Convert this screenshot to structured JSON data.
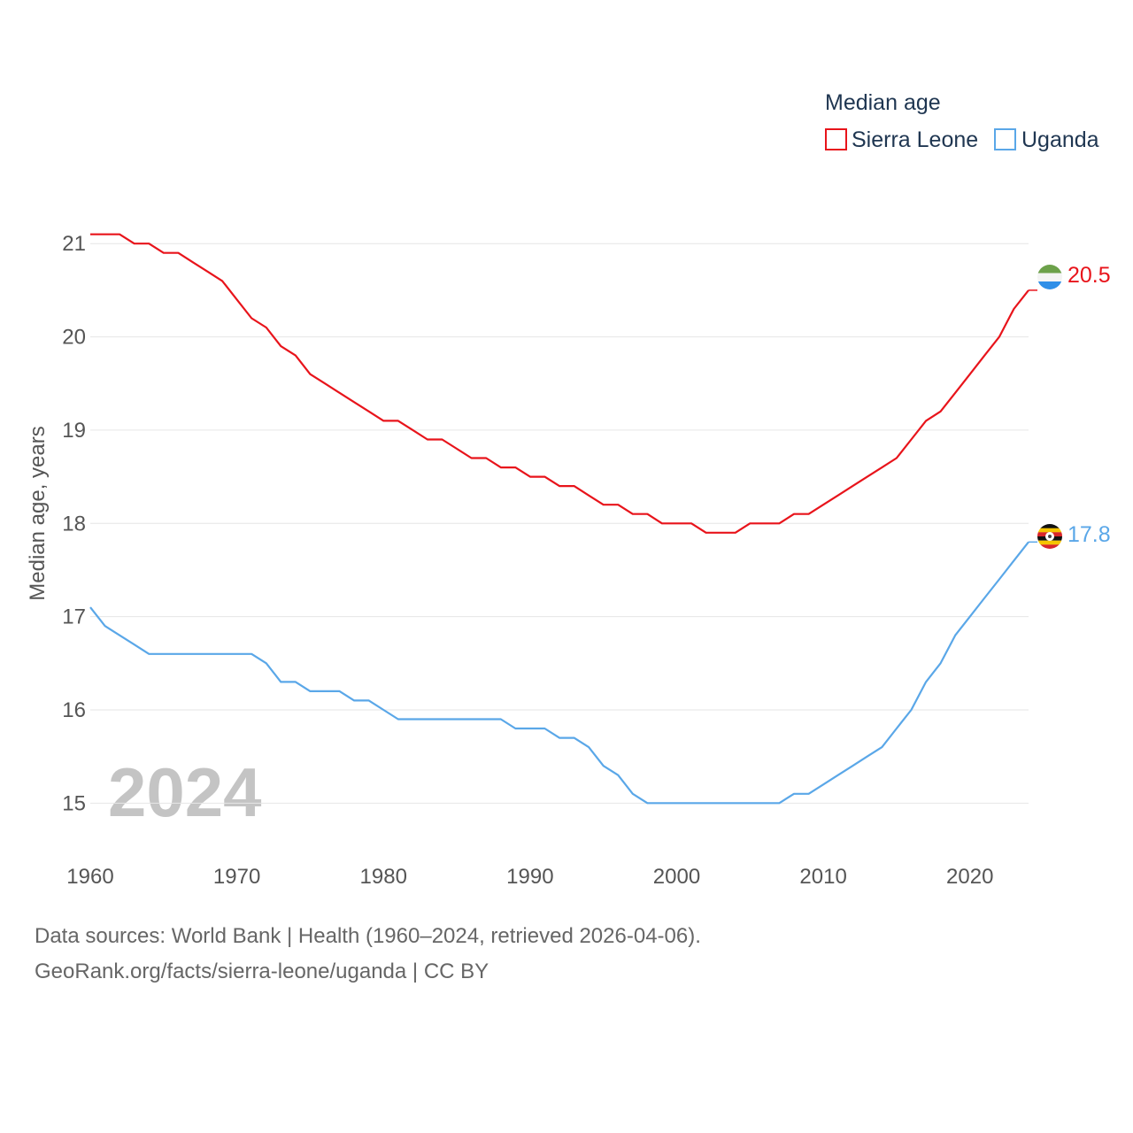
{
  "chart_data": {
    "type": "line",
    "legend_title": "Median age",
    "ylabel": "Median age, years",
    "xlabel": "",
    "year_watermark": "2024",
    "xlim": [
      1960,
      2024
    ],
    "ylim": [
      14.5,
      21.6
    ],
    "x_ticks": [
      1960,
      1970,
      1980,
      1990,
      2000,
      2010,
      2020
    ],
    "y_ticks": [
      15,
      16,
      17,
      18,
      19,
      20,
      21
    ],
    "grid": true,
    "legend_position": "top-right",
    "x": [
      1960,
      1961,
      1962,
      1963,
      1964,
      1965,
      1966,
      1967,
      1968,
      1969,
      1970,
      1971,
      1972,
      1973,
      1974,
      1975,
      1976,
      1977,
      1978,
      1979,
      1980,
      1981,
      1982,
      1983,
      1984,
      1985,
      1986,
      1987,
      1988,
      1989,
      1990,
      1991,
      1992,
      1993,
      1994,
      1995,
      1996,
      1997,
      1998,
      1999,
      2000,
      2001,
      2002,
      2003,
      2004,
      2005,
      2006,
      2007,
      2008,
      2009,
      2010,
      2011,
      2012,
      2013,
      2014,
      2015,
      2016,
      2017,
      2018,
      2019,
      2020,
      2021,
      2022,
      2023,
      2024
    ],
    "series": [
      {
        "name": "Sierra Leone",
        "color": "#e8141b",
        "end_label": "20.5",
        "flag": "sierra-leone-flag-icon",
        "values": [
          21.1,
          21.1,
          21.1,
          21.0,
          21.0,
          20.9,
          20.9,
          20.8,
          20.7,
          20.6,
          20.4,
          20.2,
          20.1,
          19.9,
          19.8,
          19.6,
          19.5,
          19.4,
          19.3,
          19.2,
          19.1,
          19.1,
          19.0,
          18.9,
          18.9,
          18.8,
          18.7,
          18.7,
          18.6,
          18.6,
          18.5,
          18.5,
          18.4,
          18.4,
          18.3,
          18.2,
          18.2,
          18.1,
          18.1,
          18.0,
          18.0,
          18.0,
          17.9,
          17.9,
          17.9,
          18.0,
          18.0,
          18.0,
          18.1,
          18.1,
          18.2,
          18.3,
          18.4,
          18.5,
          18.6,
          18.7,
          18.9,
          19.1,
          19.2,
          19.4,
          19.6,
          19.8,
          20.0,
          20.3,
          20.5
        ]
      },
      {
        "name": "Uganda",
        "color": "#5aa7e8",
        "end_label": "17.8",
        "flag": "uganda-flag-icon",
        "values": [
          17.1,
          16.9,
          16.8,
          16.7,
          16.6,
          16.6,
          16.6,
          16.6,
          16.6,
          16.6,
          16.6,
          16.6,
          16.5,
          16.3,
          16.3,
          16.2,
          16.2,
          16.2,
          16.1,
          16.1,
          16.0,
          15.9,
          15.9,
          15.9,
          15.9,
          15.9,
          15.9,
          15.9,
          15.9,
          15.8,
          15.8,
          15.8,
          15.7,
          15.7,
          15.6,
          15.4,
          15.3,
          15.1,
          15.0,
          15.0,
          15.0,
          15.0,
          15.0,
          15.0,
          15.0,
          15.0,
          15.0,
          15.0,
          15.1,
          15.1,
          15.2,
          15.3,
          15.4,
          15.5,
          15.6,
          15.8,
          16.0,
          16.3,
          16.5,
          16.8,
          17.0,
          17.2,
          17.4,
          17.6,
          17.8
        ]
      }
    ]
  },
  "footer": {
    "sources": "Data sources: World Bank | Health (1960–2024, retrieved 2026-04-06).",
    "attribution": "GeoRank.org/facts/sierra-leone/uganda | CC BY"
  }
}
